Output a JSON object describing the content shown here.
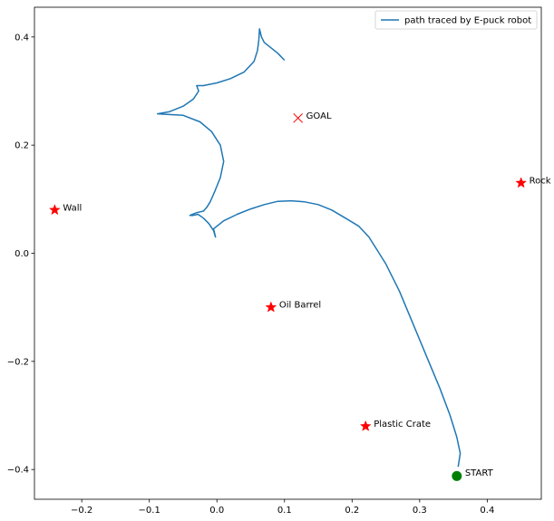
{
  "chart_data": {
    "type": "line",
    "title": "",
    "xlabel": "",
    "ylabel": "",
    "xlim": [
      -0.27,
      0.48
    ],
    "ylim": [
      -0.455,
      0.455
    ],
    "xticks": [
      -0.2,
      -0.1,
      0.0,
      0.1,
      0.2,
      0.3,
      0.4
    ],
    "xtick_labels": [
      "−0.2",
      "−0.1",
      "0.0",
      "0.1",
      "0.2",
      "0.3",
      "0.4"
    ],
    "yticks": [
      -0.4,
      -0.2,
      0.0,
      0.2,
      0.4
    ],
    "ytick_labels": [
      "−0.4",
      "−0.2",
      "0.0",
      "0.2",
      "0.4"
    ],
    "grid": false,
    "legend_position": "top-right",
    "series": [
      {
        "name": "path traced by E-puck robot",
        "color": "#1f77b4",
        "points": [
          [
            0.357,
            -0.395
          ],
          [
            0.36,
            -0.37
          ],
          [
            0.355,
            -0.34
          ],
          [
            0.345,
            -0.3
          ],
          [
            0.33,
            -0.25
          ],
          [
            0.31,
            -0.19
          ],
          [
            0.29,
            -0.13
          ],
          [
            0.27,
            -0.07
          ],
          [
            0.25,
            -0.02
          ],
          [
            0.235,
            0.01
          ],
          [
            0.225,
            0.03
          ],
          [
            0.21,
            0.05
          ],
          [
            0.19,
            0.065
          ],
          [
            0.17,
            0.08
          ],
          [
            0.15,
            0.09
          ],
          [
            0.13,
            0.095
          ],
          [
            0.11,
            0.097
          ],
          [
            0.09,
            0.096
          ],
          [
            0.07,
            0.09
          ],
          [
            0.05,
            0.082
          ],
          [
            0.03,
            0.072
          ],
          [
            0.01,
            0.06
          ],
          [
            -0.005,
            0.045
          ],
          [
            -0.002,
            0.03
          ],
          [
            -0.005,
            0.042
          ],
          [
            -0.012,
            0.055
          ],
          [
            -0.02,
            0.065
          ],
          [
            -0.028,
            0.072
          ],
          [
            -0.035,
            0.07
          ],
          [
            -0.04,
            0.07
          ],
          [
            -0.03,
            0.075
          ],
          [
            -0.02,
            0.078
          ],
          [
            -0.015,
            0.085
          ],
          [
            -0.01,
            0.095
          ],
          [
            -0.003,
            0.115
          ],
          [
            0.005,
            0.14
          ],
          [
            0.01,
            0.17
          ],
          [
            0.005,
            0.2
          ],
          [
            -0.008,
            0.225
          ],
          [
            -0.025,
            0.243
          ],
          [
            -0.05,
            0.255
          ],
          [
            -0.088,
            0.258
          ],
          [
            -0.07,
            0.262
          ],
          [
            -0.05,
            0.272
          ],
          [
            -0.035,
            0.285
          ],
          [
            -0.027,
            0.3
          ],
          [
            -0.03,
            0.31
          ],
          [
            -0.02,
            0.31
          ],
          [
            0.0,
            0.315
          ],
          [
            0.02,
            0.323
          ],
          [
            0.04,
            0.335
          ],
          [
            0.055,
            0.355
          ],
          [
            0.06,
            0.375
          ],
          [
            0.062,
            0.395
          ],
          [
            0.063,
            0.415
          ],
          [
            0.066,
            0.4
          ],
          [
            0.07,
            0.39
          ],
          [
            0.08,
            0.38
          ],
          [
            0.09,
            0.37
          ],
          [
            0.1,
            0.357
          ]
        ]
      }
    ],
    "start": {
      "x": 0.355,
      "y": -0.412,
      "label": "START",
      "color": "#008000"
    },
    "goal": {
      "x": 0.12,
      "y": 0.25,
      "label": "GOAL",
      "color": "#ff0000"
    },
    "obstacles": [
      {
        "x": -0.24,
        "y": 0.08,
        "label": "Wall"
      },
      {
        "x": 0.08,
        "y": -0.1,
        "label": "Oil Barrel"
      },
      {
        "x": 0.45,
        "y": 0.13,
        "label": "Rock"
      },
      {
        "x": 0.22,
        "y": -0.32,
        "label": "Plastic Crate"
      }
    ],
    "obstacle_color": "#ff0000"
  }
}
